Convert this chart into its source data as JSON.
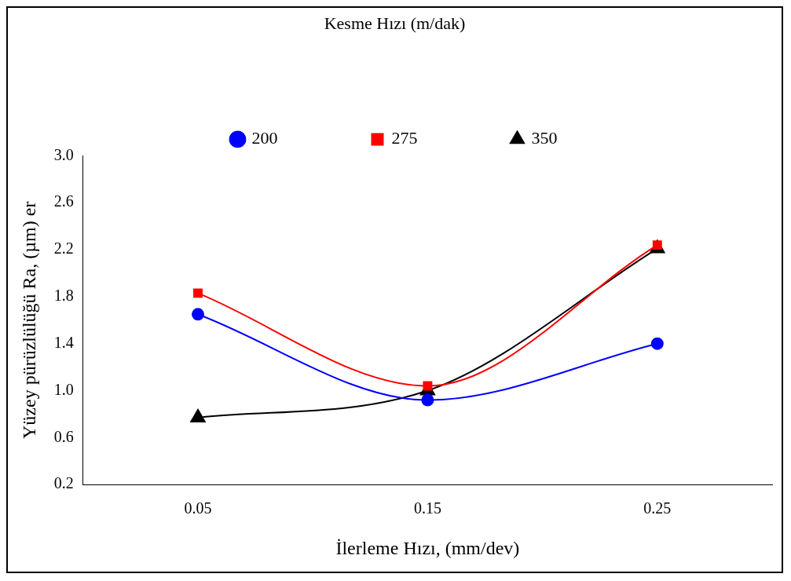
{
  "chart_data": {
    "type": "line",
    "legend_title": "Kesme Hızı (m/dak)",
    "xlabel": "İlerleme Hızı, (mm/dev)",
    "ylabel": "Yüzey pürüzlülüğü Ra, (µm) er",
    "categories": [
      "0.05",
      "0.15",
      "0.25"
    ],
    "series": [
      {
        "name": "200",
        "color": "#0000ff",
        "marker": "circle",
        "values": [
          1.65,
          0.92,
          1.4
        ]
      },
      {
        "name": "275",
        "color": "#ff0000",
        "marker": "square",
        "values": [
          1.83,
          1.04,
          2.24
        ]
      },
      {
        "name": "350",
        "color": "#000000",
        "marker": "triangle",
        "values": [
          0.77,
          1.0,
          2.21
        ]
      }
    ],
    "ylim": [
      0.2,
      3.0
    ],
    "yticks": [
      {
        "value": 0.2,
        "label": "0.2"
      },
      {
        "value": 0.6,
        "label": "0.6"
      },
      {
        "value": 1.0,
        "label": "1.0"
      },
      {
        "value": 1.4,
        "label": "1.4"
      },
      {
        "value": 1.8,
        "label": "1.8"
      },
      {
        "value": 2.2,
        "label": "2.2"
      },
      {
        "value": 2.6,
        "label": "2.6"
      },
      {
        "value": 3.0,
        "label": "3.0"
      }
    ],
    "grid": false,
    "legend": "top"
  }
}
